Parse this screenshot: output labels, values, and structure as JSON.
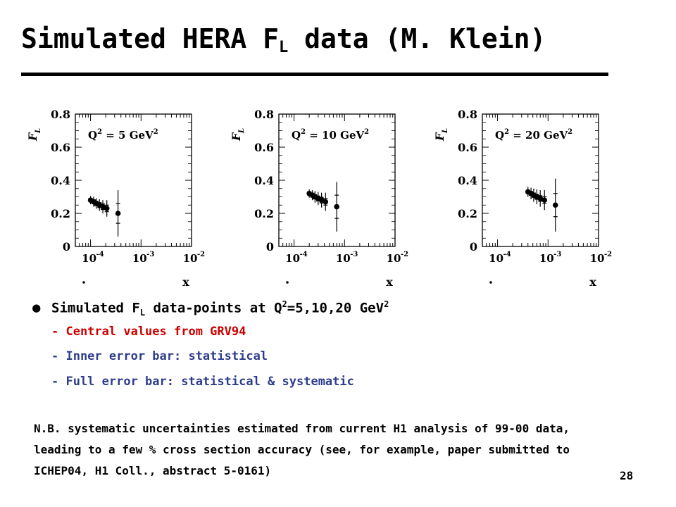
{
  "slide": {
    "title_main": "Simulated HERA F",
    "title_sub": "L",
    "title_tail": " data (M. Klein)",
    "page_number": "28"
  },
  "bullets": {
    "main": {
      "prefix": "Simulated F",
      "sub_l": "L",
      "mid": " data-points at Q",
      "sup_2": "2",
      "values": "=5,10,20 GeV",
      "sup_2b": "2"
    },
    "sub_items": [
      {
        "text": "- Central values from GRV94",
        "color": "#cc0000"
      },
      {
        "text": "- Inner error bar: statistical",
        "color": "#2e3c8c"
      },
      {
        "text": "- Full error bar: statistical & systematic",
        "color": "#2e3c8c"
      }
    ],
    "note": "N.B. systematic uncertainties estimated from current H1 analysis of 99-00 data, leading to a few % cross section accuracy (see, for example, paper submitted to ICHEP04, H1 Coll., abstract 5-0161)"
  },
  "chart_data": [
    {
      "type": "scatter",
      "ylabel": "F",
      "ylabel_sub": "L",
      "xlabel": "x",
      "x_scale": "log",
      "xlim": [
        5e-05,
        0.01
      ],
      "ylim": [
        0,
        0.8
      ],
      "yticks": [
        "0",
        "0.2",
        "0.4",
        "0.6",
        "0.8"
      ],
      "xticks": [
        {
          "base": "10",
          "exp": "-4"
        },
        {
          "base": "10",
          "exp": "-3"
        },
        {
          "base": "10",
          "exp": "-2"
        }
      ],
      "annotation": {
        "q": "Q",
        "sup": "2",
        "rest": " = 5 GeV",
        "unit_sup": "2"
      },
      "x": [
        0.0001,
        0.000115,
        0.00013,
        0.00015,
        0.000175,
        0.00021,
        0.00035
      ],
      "y": [
        0.28,
        0.27,
        0.26,
        0.25,
        0.24,
        0.23,
        0.2
      ],
      "stat_err": [
        0.01,
        0.012,
        0.013,
        0.015,
        0.017,
        0.02,
        0.06
      ],
      "tot_err": [
        0.025,
        0.03,
        0.032,
        0.035,
        0.04,
        0.05,
        0.14
      ]
    },
    {
      "type": "scatter",
      "ylabel": "F",
      "ylabel_sub": "L",
      "xlabel": "x",
      "x_scale": "log",
      "xlim": [
        5e-05,
        0.01
      ],
      "ylim": [
        0,
        0.8
      ],
      "yticks": [
        "0",
        "0.2",
        "0.4",
        "0.6",
        "0.8"
      ],
      "xticks": [
        {
          "base": "10",
          "exp": "-4"
        },
        {
          "base": "10",
          "exp": "-3"
        },
        {
          "base": "10",
          "exp": "-2"
        }
      ],
      "annotation": {
        "q": "Q",
        "sup": "2",
        "rest": " = 10 GeV",
        "unit_sup": "2"
      },
      "x": [
        0.0002,
        0.00023,
        0.00026,
        0.0003,
        0.00035,
        0.00042,
        0.0007
      ],
      "y": [
        0.32,
        0.31,
        0.3,
        0.29,
        0.28,
        0.27,
        0.24
      ],
      "stat_err": [
        0.01,
        0.012,
        0.013,
        0.015,
        0.017,
        0.02,
        0.07
      ],
      "tot_err": [
        0.025,
        0.03,
        0.035,
        0.04,
        0.045,
        0.055,
        0.15
      ]
    },
    {
      "type": "scatter",
      "ylabel": "F",
      "ylabel_sub": "L",
      "xlabel": "x",
      "x_scale": "log",
      "xlim": [
        5e-05,
        0.01
      ],
      "ylim": [
        0,
        0.8
      ],
      "yticks": [
        "0",
        "0.2",
        "0.4",
        "0.6",
        "0.8"
      ],
      "xticks": [
        {
          "base": "10",
          "exp": "-4"
        },
        {
          "base": "10",
          "exp": "-3"
        },
        {
          "base": "10",
          "exp": "-2"
        }
      ],
      "annotation": {
        "q": "Q",
        "sup": "2",
        "rest": " = 20 GeV",
        "unit_sup": "2"
      },
      "x": [
        0.0004,
        0.00046,
        0.00052,
        0.0006,
        0.0007,
        0.00085,
        0.0014
      ],
      "y": [
        0.33,
        0.32,
        0.31,
        0.3,
        0.29,
        0.28,
        0.25
      ],
      "stat_err": [
        0.01,
        0.012,
        0.013,
        0.015,
        0.017,
        0.02,
        0.07
      ],
      "tot_err": [
        0.03,
        0.035,
        0.04,
        0.045,
        0.05,
        0.06,
        0.16
      ]
    }
  ]
}
